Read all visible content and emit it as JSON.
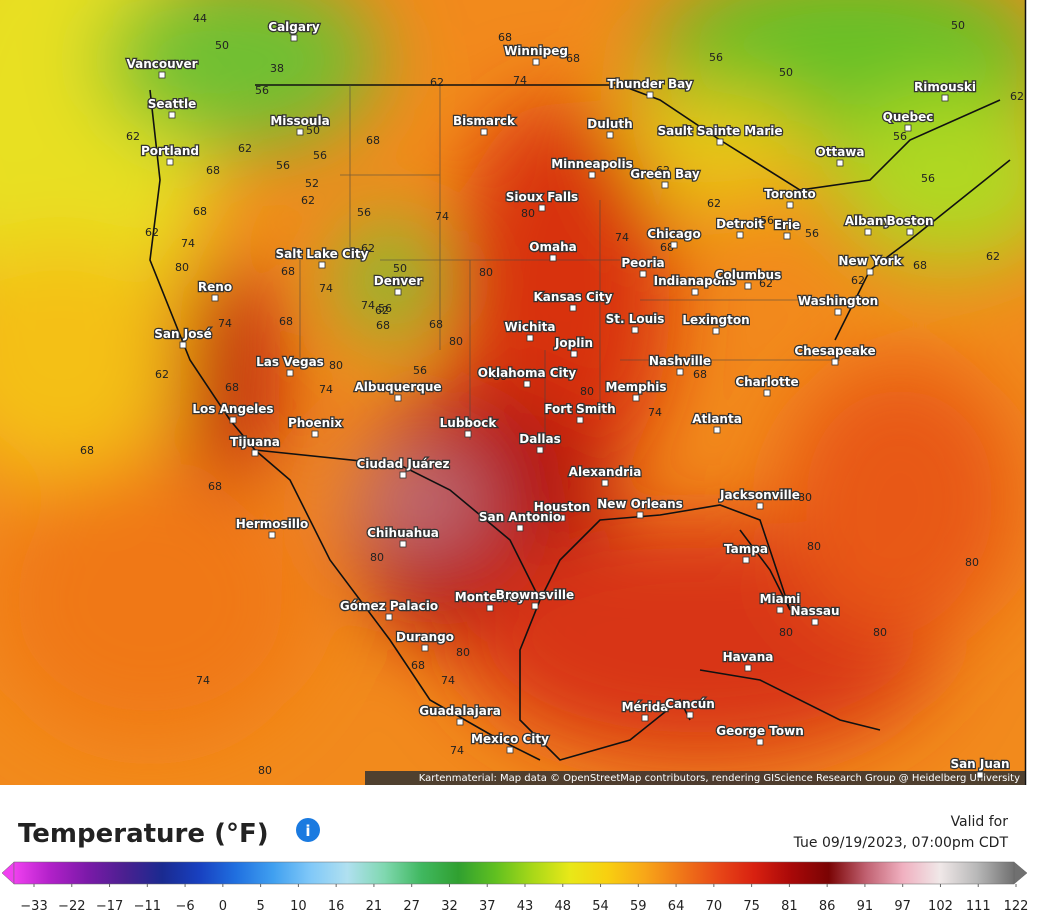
{
  "map": {
    "cities": [
      "Calgary",
      "Vancouver",
      "Seattle",
      "Portland",
      "Missoula",
      "Winnipeg",
      "Thunder Bay",
      "Bismarck",
      "Duluth",
      "Sault Sainte Marie",
      "Rimouski",
      "Quebec",
      "Ottawa",
      "Minneapolis",
      "Green Bay",
      "Toronto",
      "Sioux Falls",
      "Salt Lake City",
      "Albany",
      "Boston",
      "Detroit",
      "Erie",
      "Chicago",
      "Omaha",
      "New York",
      "Reno",
      "Denver",
      "Peoria",
      "Indianapolis",
      "Columbus",
      "Kansas City",
      "Washington",
      "San José",
      "Wichita",
      "St. Louis",
      "Lexington",
      "Joplin",
      "Las Vegas",
      "Chesapeake",
      "Nashville",
      "Oklahoma City",
      "Albuquerque",
      "Memphis",
      "Charlotte",
      "Los Angeles",
      "Fort Smith",
      "Phoenix",
      "Atlanta",
      "Tijuana",
      "Lubbock",
      "Dallas",
      "Ciudad Juárez",
      "Alexandria",
      "Jacksonville",
      "Hermosillo",
      "Houston",
      "New Orleans",
      "Chihuahua",
      "San Antonio",
      "Tampa",
      "Gómez Palacio",
      "Monterrey",
      "Brownsville",
      "Miami",
      "Nassau",
      "Durango",
      "Havana",
      "Mérida",
      "Cancún",
      "Guadalajara",
      "George Town",
      "Mexico City",
      "San Juan"
    ],
    "contour_labels": [
      44,
      50,
      38,
      56,
      50,
      56,
      62,
      62,
      68,
      56,
      52,
      62,
      68,
      68,
      68,
      74,
      62,
      56,
      50,
      50,
      62,
      56,
      56,
      62,
      62,
      56,
      56,
      68,
      74,
      62,
      62,
      68,
      62,
      74,
      80,
      56,
      62,
      68,
      74,
      50,
      62,
      74,
      56,
      68,
      68,
      80,
      80,
      80,
      74,
      62,
      68,
      74,
      68,
      62,
      68,
      74,
      80,
      56,
      80,
      80,
      74,
      68,
      80,
      68,
      68,
      74,
      80,
      80,
      80,
      80,
      80,
      68,
      74,
      80,
      74,
      80
    ],
    "attribution": "Kartenmaterial: Map data © OpenStreetMap contributors, rendering GIScience Research Group @ Heidelberg University"
  },
  "legend": {
    "title": "Temperature (°F)",
    "valid_label": "Valid for",
    "valid_time": "Tue 09/19/2023, 07:00pm CDT",
    "ticks": [
      {
        "value": -33,
        "label": "−33"
      },
      {
        "value": -22,
        "label": "−22"
      },
      {
        "value": -17,
        "label": "−17"
      },
      {
        "value": -11,
        "label": "−11"
      },
      {
        "value": -6,
        "label": "−6"
      },
      0,
      5,
      10,
      16,
      21,
      27,
      32,
      37,
      43,
      48,
      54,
      59,
      64,
      70,
      75,
      81,
      86,
      91,
      97,
      102,
      111,
      122
    ],
    "colors": [
      "#f040f0",
      "#b020c8",
      "#7a1aa8",
      "#4a2090",
      "#1a2a90",
      "#1840c0",
      "#2070e0",
      "#40a0f0",
      "#80c8f8",
      "#b0e0f0",
      "#80d8b0",
      "#40b860",
      "#30a030",
      "#60c020",
      "#a8d818",
      "#e8e818",
      "#f8d010",
      "#f8a818",
      "#f07818",
      "#e84818",
      "#d82010",
      "#a80808",
      "#7a0404",
      "#c06070",
      "#f0b0c0",
      "#f0e8e8",
      "#b8b8b8",
      "#707070"
    ]
  }
}
